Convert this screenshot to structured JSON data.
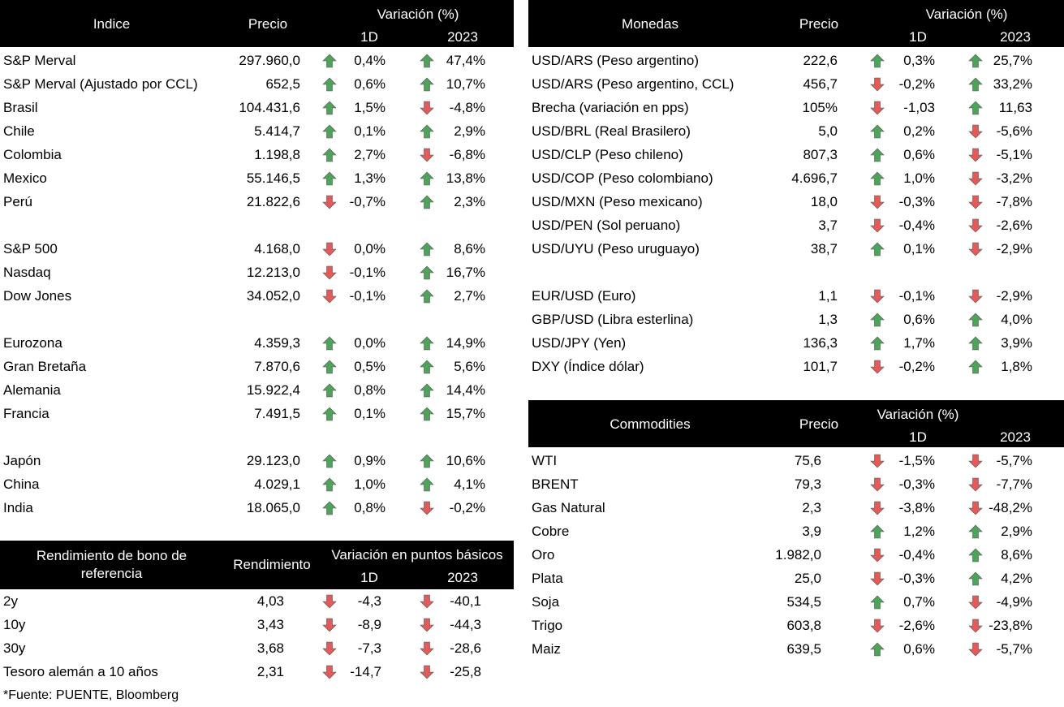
{
  "colors": {
    "up": "#4ea35a",
    "down": "#e25a5a"
  },
  "indices": {
    "headers": {
      "name": "Indice",
      "price": "Precio",
      "variation": "Variación (%)",
      "d1": "1D",
      "ytd": "2023"
    },
    "rows": [
      {
        "name": "S&P Merval",
        "price": "297.960,0",
        "d1": "0,4%",
        "d1_dir": "up",
        "ytd": "47,4%",
        "ytd_dir": "up"
      },
      {
        "name": "S&P Merval (Ajustado por CCL)",
        "price": "652,5",
        "d1": "0,6%",
        "d1_dir": "up",
        "ytd": "10,7%",
        "ytd_dir": "up"
      },
      {
        "name": "Brasil",
        "price": "104.431,6",
        "d1": "1,5%",
        "d1_dir": "up",
        "ytd": "-4,8%",
        "ytd_dir": "down"
      },
      {
        "name": "Chile",
        "price": "5.414,7",
        "d1": "0,1%",
        "d1_dir": "up",
        "ytd": "2,9%",
        "ytd_dir": "up"
      },
      {
        "name": "Colombia",
        "price": "1.198,8",
        "d1": "2,7%",
        "d1_dir": "up",
        "ytd": "-6,8%",
        "ytd_dir": "down"
      },
      {
        "name": "Mexico",
        "price": "55.146,5",
        "d1": "1,3%",
        "d1_dir": "up",
        "ytd": "13,8%",
        "ytd_dir": "up"
      },
      {
        "name": "Perú",
        "price": "21.822,6",
        "d1": "-0,7%",
        "d1_dir": "down",
        "ytd": "2,3%",
        "ytd_dir": "up"
      },
      {
        "name": "S&P 500",
        "price": "4.168,0",
        "d1": "0,0%",
        "d1_dir": "down",
        "ytd": "8,6%",
        "ytd_dir": "up",
        "gap": true
      },
      {
        "name": "Nasdaq",
        "price": "12.213,0",
        "d1": "-0,1%",
        "d1_dir": "down",
        "ytd": "16,7%",
        "ytd_dir": "up"
      },
      {
        "name": "Dow Jones",
        "price": "34.052,0",
        "d1": "-0,1%",
        "d1_dir": "down",
        "ytd": "2,7%",
        "ytd_dir": "up"
      },
      {
        "name": "Eurozona",
        "price": "4.359,3",
        "d1": "0,0%",
        "d1_dir": "up",
        "ytd": "14,9%",
        "ytd_dir": "up",
        "gap": true
      },
      {
        "name": "Gran Bretaña",
        "price": "7.870,6",
        "d1": "0,5%",
        "d1_dir": "up",
        "ytd": "5,6%",
        "ytd_dir": "up"
      },
      {
        "name": "Alemania",
        "price": "15.922,4",
        "d1": "0,8%",
        "d1_dir": "up",
        "ytd": "14,4%",
        "ytd_dir": "up"
      },
      {
        "name": "Francia",
        "price": "7.491,5",
        "d1": "0,1%",
        "d1_dir": "up",
        "ytd": "15,7%",
        "ytd_dir": "up"
      },
      {
        "name": "Japón",
        "price": "29.123,0",
        "d1": "0,9%",
        "d1_dir": "up",
        "ytd": "10,6%",
        "ytd_dir": "up",
        "gap": true
      },
      {
        "name": "China",
        "price": "4.029,1",
        "d1": "1,0%",
        "d1_dir": "up",
        "ytd": "4,1%",
        "ytd_dir": "up"
      },
      {
        "name": "India",
        "price": "18.065,0",
        "d1": "0,8%",
        "d1_dir": "up",
        "ytd": "-0,2%",
        "ytd_dir": "down"
      }
    ]
  },
  "bonds": {
    "headers": {
      "name": "Rendimiento de bono de referencia",
      "price": "Rendimiento",
      "variation": "Variación en puntos básicos",
      "d1": "1D",
      "ytd": "2023"
    },
    "rows": [
      {
        "name": "2y",
        "price": "4,03",
        "d1": "-4,3",
        "d1_dir": "down",
        "ytd": "-40,1",
        "ytd_dir": "down"
      },
      {
        "name": "10y",
        "price": "3,43",
        "d1": "-8,9",
        "d1_dir": "down",
        "ytd": "-44,3",
        "ytd_dir": "down"
      },
      {
        "name": "30y",
        "price": "3,68",
        "d1": "-7,3",
        "d1_dir": "down",
        "ytd": "-28,6",
        "ytd_dir": "down"
      },
      {
        "name": "Tesoro alemán a 10 años",
        "price": "2,31",
        "d1": "-14,7",
        "d1_dir": "down",
        "ytd": "-25,8",
        "ytd_dir": "down"
      }
    ]
  },
  "currencies": {
    "headers": {
      "name": "Monedas",
      "price": "Precio",
      "variation": "Variación (%)",
      "d1": "1D",
      "ytd": "2023"
    },
    "rows": [
      {
        "name": "USD/ARS (Peso argentino)",
        "price": "222,6",
        "d1": "0,3%",
        "d1_dir": "up",
        "ytd": "25,7%",
        "ytd_dir": "up"
      },
      {
        "name": "USD/ARS (Peso argentino, CCL)",
        "price": "456,7",
        "d1": "-0,2%",
        "d1_dir": "down",
        "ytd": "33,2%",
        "ytd_dir": "up"
      },
      {
        "name": "Brecha (variación en pps)",
        "price": "105%",
        "d1": "-1,03",
        "d1_dir": "down",
        "ytd": "11,63",
        "ytd_dir": "up"
      },
      {
        "name": "USD/BRL (Real Brasilero)",
        "price": "5,0",
        "d1": "0,2%",
        "d1_dir": "up",
        "ytd": "-5,6%",
        "ytd_dir": "down"
      },
      {
        "name": "USD/CLP (Peso chileno)",
        "price": "807,3",
        "d1": "0,6%",
        "d1_dir": "up",
        "ytd": "-5,1%",
        "ytd_dir": "down"
      },
      {
        "name": "USD/COP (Peso colombiano)",
        "price": "4.696,7",
        "d1": "1,0%",
        "d1_dir": "up",
        "ytd": "-3,2%",
        "ytd_dir": "down"
      },
      {
        "name": "USD/MXN (Peso mexicano)",
        "price": "18,0",
        "d1": "-0,3%",
        "d1_dir": "down",
        "ytd": "-7,8%",
        "ytd_dir": "down"
      },
      {
        "name": "USD/PEN (Sol peruano)",
        "price": "3,7",
        "d1": "-0,4%",
        "d1_dir": "down",
        "ytd": "-2,6%",
        "ytd_dir": "down"
      },
      {
        "name": "USD/UYU (Peso uruguayo)",
        "price": "38,7",
        "d1": "0,1%",
        "d1_dir": "up",
        "ytd": "-2,9%",
        "ytd_dir": "down"
      },
      {
        "name": "EUR/USD (Euro)",
        "price": "1,1",
        "d1": "-0,1%",
        "d1_dir": "down",
        "ytd": "-2,9%",
        "ytd_dir": "down",
        "gap": true
      },
      {
        "name": "GBP/USD (Libra esterlina)",
        "price": "1,3",
        "d1": "0,6%",
        "d1_dir": "up",
        "ytd": "4,0%",
        "ytd_dir": "up"
      },
      {
        "name": "USD/JPY (Yen)",
        "price": "136,3",
        "d1": "1,7%",
        "d1_dir": "up",
        "ytd": "3,9%",
        "ytd_dir": "up"
      },
      {
        "name": "DXY (Índice dólar)",
        "price": "101,7",
        "d1": "-0,2%",
        "d1_dir": "down",
        "ytd": "1,8%",
        "ytd_dir": "up"
      }
    ]
  },
  "commodities": {
    "headers": {
      "name": "Commodities",
      "price": "Precio",
      "variation": "Variación (%)",
      "d1": "1D",
      "ytd": "2023"
    },
    "rows": [
      {
        "name": "WTI",
        "price": "75,6",
        "d1": "-1,5%",
        "d1_dir": "down",
        "ytd": "-5,7%",
        "ytd_dir": "down"
      },
      {
        "name": "BRENT",
        "price": "79,3",
        "d1": "-0,3%",
        "d1_dir": "down",
        "ytd": "-7,7%",
        "ytd_dir": "down"
      },
      {
        "name": "Gas Natural",
        "price": "2,3",
        "d1": "-3,8%",
        "d1_dir": "down",
        "ytd": "-48,2%",
        "ytd_dir": "down"
      },
      {
        "name": "Cobre",
        "price": "3,9",
        "d1": "1,2%",
        "d1_dir": "up",
        "ytd": "2,9%",
        "ytd_dir": "up"
      },
      {
        "name": "Oro",
        "price": "1.982,0",
        "d1": "-0,4%",
        "d1_dir": "down",
        "ytd": "8,6%",
        "ytd_dir": "up"
      },
      {
        "name": "Plata",
        "price": "25,0",
        "d1": "-0,3%",
        "d1_dir": "down",
        "ytd": "4,2%",
        "ytd_dir": "up"
      },
      {
        "name": "Soja",
        "price": "534,5",
        "d1": "0,7%",
        "d1_dir": "up",
        "ytd": "-4,9%",
        "ytd_dir": "down"
      },
      {
        "name": "Trigo",
        "price": "603,8",
        "d1": "-2,6%",
        "d1_dir": "down",
        "ytd": "-23,8%",
        "ytd_dir": "down"
      },
      {
        "name": "Maiz",
        "price": "639,5",
        "d1": "0,6%",
        "d1_dir": "up",
        "ytd": "-5,7%",
        "ytd_dir": "down"
      }
    ]
  },
  "footnote": "*Fuente: PUENTE, Bloomberg"
}
